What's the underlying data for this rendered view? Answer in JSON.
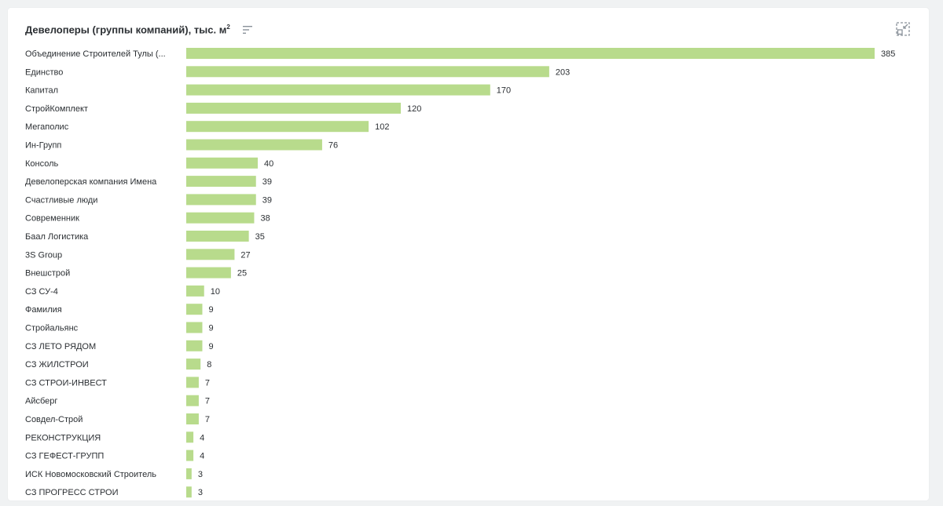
{
  "header": {
    "title": "Девелоперы (группы компаний), тыс. м",
    "title_sup": "2",
    "sort_icon": "sort-icon",
    "collapse_icon": "collapse-icon"
  },
  "colors": {
    "bar": "#b8db8c",
    "text": "#2b2f33",
    "icon": "#8a929a"
  },
  "chart_data": {
    "type": "bar",
    "orientation": "horizontal",
    "title": "Девелоперы (группы компаний), тыс. м²",
    "categories": [
      "Объединение Строителей Тулы (...",
      "Единство",
      "Капитал",
      "СтройКомплект",
      "Мегаполис",
      "Ин-Групп",
      "Консоль",
      "Девелоперская компания Имена",
      "Счастливые люди",
      "Современник",
      "Баал Логистика",
      "3S Group",
      "Внешстрой",
      "СЗ СУ-4",
      "Фамилия",
      "Стройальянс",
      "СЗ ЛЕТО РЯДОМ",
      "СЗ ЖИЛСТРОИ",
      "СЗ СТРОИ-ИНВЕСТ",
      "Айсберг",
      "Совдел-Строй",
      "РЕКОНСТРУКЦИЯ",
      "СЗ ГЕФЕСТ-ГРУПП",
      "ИСК Новомосковский Строитель",
      "СЗ ПРОГРЕСС СТРОИ"
    ],
    "values": [
      385,
      203,
      170,
      120,
      102,
      76,
      40,
      39,
      39,
      38,
      35,
      27,
      25,
      10,
      9,
      9,
      9,
      8,
      7,
      7,
      7,
      4,
      4,
      3,
      3
    ],
    "xlim": [
      0,
      385
    ],
    "grid": false,
    "legend": "none",
    "data_labels": true
  }
}
